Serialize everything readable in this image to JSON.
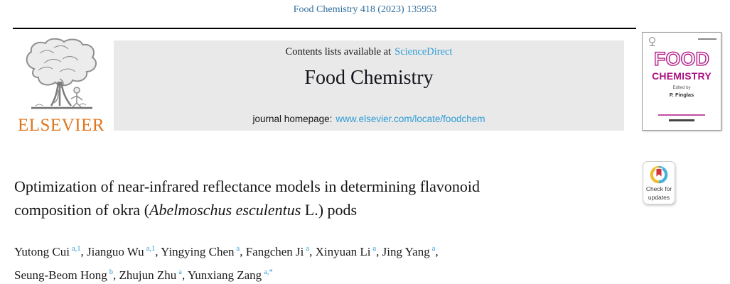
{
  "colors": {
    "citation_blue": "#2e6d9e",
    "link_blue": "#2e9bd6",
    "elsevier_orange": "#e0751c",
    "cover_magenta": "#ad1280",
    "banner_gray": "#e9e9e9",
    "crossmark_red": "#cf3339",
    "crossmark_yellow": "#efbc2e",
    "crossmark_blue": "#45b0d9",
    "rule_black": "#000000"
  },
  "header": {
    "citation": "Food Chemistry 418 (2023) 135953"
  },
  "banner": {
    "contents_text": "Contents lists available at",
    "sciencedirect_link": "ScienceDirect",
    "journal_title": "Food Chemistry",
    "homepage_label": "journal homepage:",
    "homepage_link": "www.elsevier.com/locate/foodchem"
  },
  "publisher": {
    "wordmark": "ELSEVIER"
  },
  "cover": {
    "title_word1": "FOOD",
    "title_word2": "CHEMISTRY",
    "edited_by_label": "Edited by",
    "editor_name": "P. Finglas"
  },
  "article": {
    "title_line1": "Optimization of near-infrared reflectance models in determining flavonoid",
    "title_line2_pre": "composition of okra (",
    "title_line2_italic": "Abelmoschus esculentus",
    "title_line2_post": " L.) pods"
  },
  "authors": {
    "line1": [
      {
        "name": "Yutong Cui",
        "sup": "a,1",
        "sep": ", "
      },
      {
        "name": "Jianguo Wu",
        "sup": "a,1",
        "sep": ", "
      },
      {
        "name": "Yingying Chen",
        "sup": "a",
        "sep": ", "
      },
      {
        "name": "Fangchen Ji",
        "sup": "a",
        "sep": ", "
      },
      {
        "name": "Xinyuan Li",
        "sup": "a",
        "sep": ", "
      },
      {
        "name": "Jing Yang",
        "sup": "a",
        "sep": ","
      }
    ],
    "line2": [
      {
        "name": "Seung-Beom Hong",
        "sup": "b",
        "sep": ", "
      },
      {
        "name": "Zhujun Zhu",
        "sup": "a",
        "sep": ", "
      },
      {
        "name": "Yunxiang Zang",
        "sup": "a,*",
        "sep": ""
      }
    ]
  },
  "crossmark": {
    "label_line1": "Check for",
    "label_line2": "updates"
  }
}
